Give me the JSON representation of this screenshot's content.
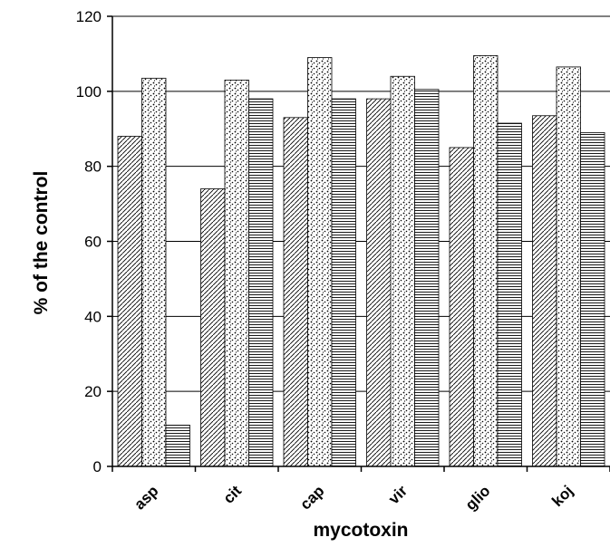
{
  "chart_data": {
    "type": "bar",
    "categories": [
      "asp",
      "cit",
      "cap",
      "vir",
      "glio",
      "koj"
    ],
    "series": [
      {
        "values": [
          88,
          74,
          93,
          98,
          85,
          93.5
        ],
        "pattern": "diagonal-hatch"
      },
      {
        "values": [
          103.5,
          103,
          109,
          104,
          109.5,
          106.5
        ],
        "pattern": "dotted"
      },
      {
        "values": [
          11,
          98,
          98,
          100.5,
          91.5,
          89
        ],
        "pattern": "horizontal-lines"
      }
    ],
    "title": "",
    "xlabel": "mycotoxin",
    "ylabel": "% of the control",
    "ylim": [
      0,
      120
    ],
    "yticks": [
      0,
      20,
      40,
      60,
      80,
      100,
      120
    ],
    "grid": true,
    "legend": "none",
    "colors": {
      "bar_fill": "#ffffff",
      "pattern_ink": "#000000",
      "grid": "#000000"
    }
  }
}
